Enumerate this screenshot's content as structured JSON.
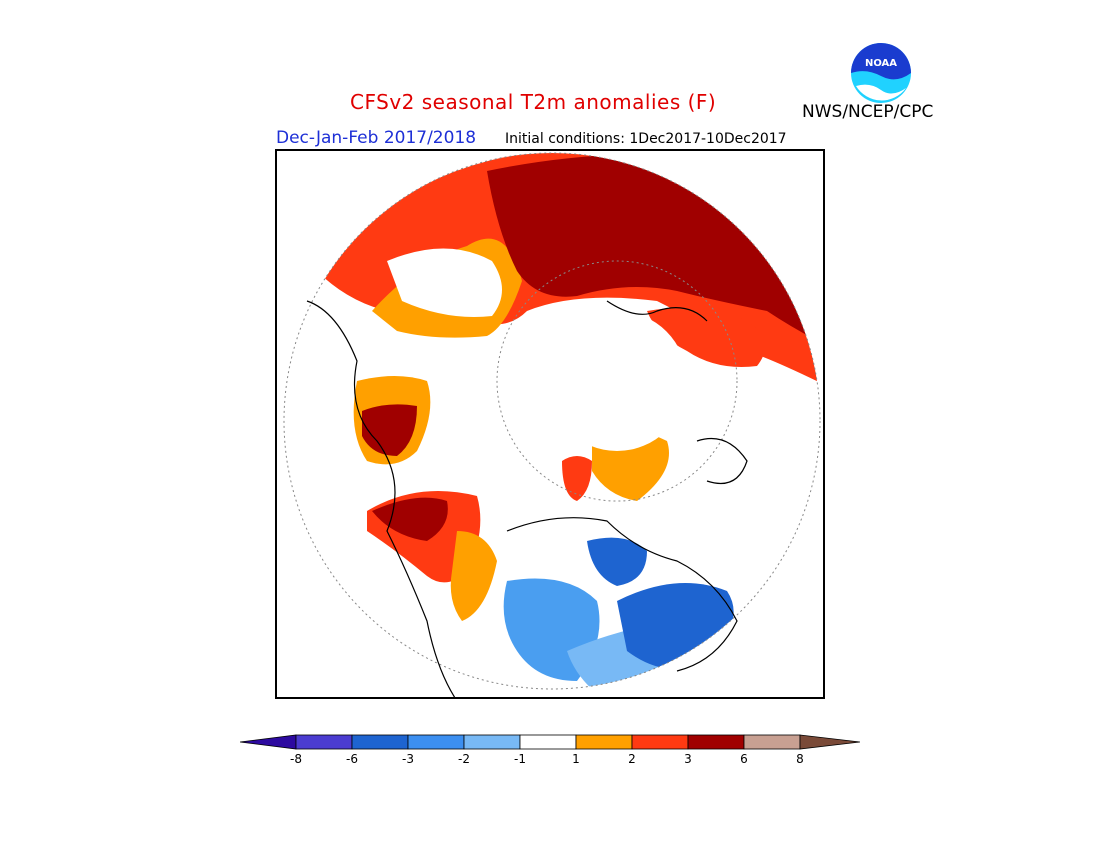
{
  "header": {
    "title": "CFSv2 seasonal T2m anomalies (F)",
    "agency": "NWS/NCEP/CPC",
    "season": "Dec-Jan-Feb 2017/2018",
    "initial_conditions": "Initial conditions: 1Dec2017-10Dec2017"
  },
  "logo": {
    "text": "NOAA",
    "colors": {
      "blue": "#1a3ccf",
      "cyan": "#20d2ff"
    }
  },
  "map": {
    "projection": "north-polar-stereographic",
    "variable": "T2m anomaly",
    "units": "F",
    "regions": [
      {
        "name": "eastern-europe-russia",
        "anomaly_class": "3 to 6",
        "color": "#a00000"
      },
      {
        "name": "northern-europe",
        "anomaly_class": "2 to 3",
        "color": "#ff3a12"
      },
      {
        "name": "scandinavia",
        "anomaly_class": "1 to 2",
        "color": "#ffa000"
      },
      {
        "name": "siberia-kamchatka",
        "anomaly_class": "1 to 3",
        "color": "#ffa000"
      },
      {
        "name": "southeast-asia",
        "anomaly_class": "3 to 6",
        "color": "#a00000"
      },
      {
        "name": "western-us",
        "anomaly_class": "3 to 6",
        "color": "#a00000"
      },
      {
        "name": "western-us-outer",
        "anomaly_class": "2 to 3",
        "color": "#ff3a12"
      },
      {
        "name": "eastern-canada",
        "anomaly_class": "-2 to -3",
        "color": "#4a9ef0"
      },
      {
        "name": "hudson-bay",
        "anomaly_class": "-3 to -6",
        "color": "#1e64d0"
      },
      {
        "name": "greenland-east",
        "anomaly_class": "-3 to -6",
        "color": "#1e64d0"
      },
      {
        "name": "north-atlantic",
        "anomaly_class": "-2 to -3",
        "color": "#4a9ef0"
      }
    ]
  },
  "colorbar": {
    "ticks": [
      "-8",
      "-6",
      "-3",
      "-2",
      "-1",
      "1",
      "2",
      "3",
      "6",
      "8"
    ],
    "colors": [
      "#2d0aa0",
      "#4b3cd0",
      "#1e64d0",
      "#3c8ff0",
      "#78b9f5",
      "#ffffff",
      "#ffa000",
      "#ff3a12",
      "#a00000",
      "#c8a092",
      "#7a4a38"
    ]
  }
}
